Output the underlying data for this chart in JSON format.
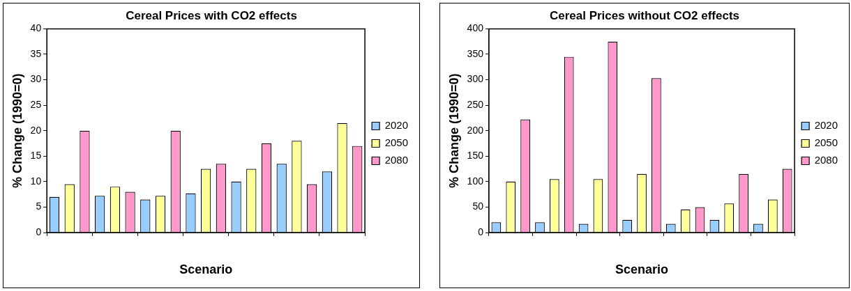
{
  "chart_data": [
    {
      "type": "bar",
      "title": "Cereal Prices with CO2 effects",
      "xlabel": "Scenario",
      "ylabel": "% Change (1990=0)",
      "categories": [
        null,
        null,
        null,
        null,
        null,
        null,
        null
      ],
      "series": [
        {
          "name": "2020",
          "color": "#99ccff",
          "values": [
            7,
            7.2,
            6.5,
            7.7,
            10,
            13.5,
            12
          ]
        },
        {
          "name": "2050",
          "color": "#ffff99",
          "values": [
            9.5,
            9,
            7.2,
            12.5,
            12.5,
            18,
            21.5
          ]
        },
        {
          "name": "2080",
          "color": "#ff99cc",
          "values": [
            20,
            8,
            20,
            13.5,
            17.5,
            9.5,
            17
          ]
        }
      ],
      "ylim": [
        0,
        40
      ],
      "yticks": [
        0,
        5,
        10,
        15,
        20,
        25,
        30,
        35,
        40
      ],
      "grid": false,
      "legend": "right"
    },
    {
      "type": "bar",
      "title": "Cereal Prices without CO2 effects",
      "xlabel": "Scenario",
      "ylabel": "% Change (1990=0)",
      "categories": [
        null,
        null,
        null,
        null,
        null,
        null,
        null
      ],
      "series": [
        {
          "name": "2020",
          "color": "#99ccff",
          "values": [
            20,
            20,
            17,
            25,
            17,
            25,
            17
          ]
        },
        {
          "name": "2050",
          "color": "#ffff99",
          "values": [
            100,
            105,
            105,
            115,
            45,
            57,
            65
          ]
        },
        {
          "name": "2080",
          "color": "#ff99cc",
          "values": [
            222,
            345,
            375,
            303,
            50,
            115,
            125
          ]
        }
      ],
      "ylim": [
        0,
        400
      ],
      "yticks": [
        0,
        50,
        100,
        150,
        200,
        250,
        300,
        350,
        400
      ],
      "grid": false,
      "legend": "right"
    }
  ]
}
